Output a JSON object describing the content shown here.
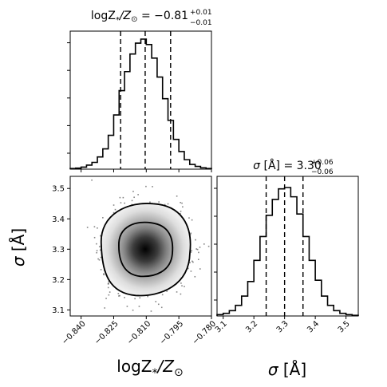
{
  "chart_data": [
    {
      "type": "histogram",
      "title_left": "logZ",
      "title_sub": "*",
      "title_mid": "/Z",
      "title_sun": "⊙",
      "title_eq": " = −0.81",
      "title_up": "+0.01",
      "title_dn": "−0.01",
      "xlim": [
        -0.845,
        -0.78
      ],
      "quantiles": [
        -0.8218,
        -0.8105,
        -0.7988
      ],
      "bins": [
        -0.845,
        -0.8425,
        -0.84,
        -0.8375,
        -0.835,
        -0.8325,
        -0.83,
        -0.8275,
        -0.825,
        -0.8225,
        -0.82,
        -0.8175,
        -0.815,
        -0.8125,
        -0.81,
        -0.8075,
        -0.805,
        -0.8025,
        -0.8,
        -0.7975,
        -0.795,
        -0.7925,
        -0.79,
        -0.7875,
        -0.785,
        -0.7825,
        -0.78
      ],
      "counts": [
        0.5,
        0.8,
        1.5,
        3,
        5,
        9,
        15,
        25,
        40,
        58,
        72,
        85,
        93,
        96,
        92,
        82,
        68,
        52,
        36,
        22,
        13,
        7,
        3.5,
        2,
        1,
        0.5
      ]
    },
    {
      "type": "heatmap",
      "xlim": [
        -0.845,
        -0.78
      ],
      "ylim": [
        3.08,
        3.54
      ],
      "xticks": [
        "−0.840",
        "−0.825",
        "−0.810",
        "−0.795",
        "−0.780"
      ],
      "yticks": [
        "3.1",
        "3.2",
        "3.3",
        "3.4",
        "3.5"
      ],
      "center": [
        -0.8105,
        3.3
      ],
      "xlabel_main": "logZ",
      "xlabel_sub": "*",
      "xlabel_mid": "/Z",
      "xlabel_sun": "⊙",
      "ylabel_main": "σ",
      "ylabel_unit": " [Å]"
    },
    {
      "type": "histogram",
      "title_main": "σ",
      "title_unit": " [Å] = 3.30",
      "title_up": "+0.06",
      "title_dn": "−0.06",
      "xlim": [
        3.08,
        3.54
      ],
      "xticks": [
        "3.1",
        "3.2",
        "3.3",
        "3.4",
        "3.5"
      ],
      "xlabel_main": "σ",
      "xlabel_unit": " [Å]",
      "quantiles": [
        3.24,
        3.3,
        3.36
      ],
      "bins": [
        3.08,
        3.1,
        3.12,
        3.14,
        3.16,
        3.18,
        3.2,
        3.22,
        3.24,
        3.26,
        3.28,
        3.3,
        3.32,
        3.34,
        3.36,
        3.38,
        3.4,
        3.42,
        3.44,
        3.46,
        3.48,
        3.5,
        3.52,
        3.54
      ],
      "counts": [
        1,
        2,
        4,
        8,
        15,
        26,
        42,
        60,
        76,
        88,
        96,
        97,
        90,
        77,
        60,
        42,
        27,
        15,
        8,
        4,
        2,
        1,
        0.5
      ]
    }
  ]
}
